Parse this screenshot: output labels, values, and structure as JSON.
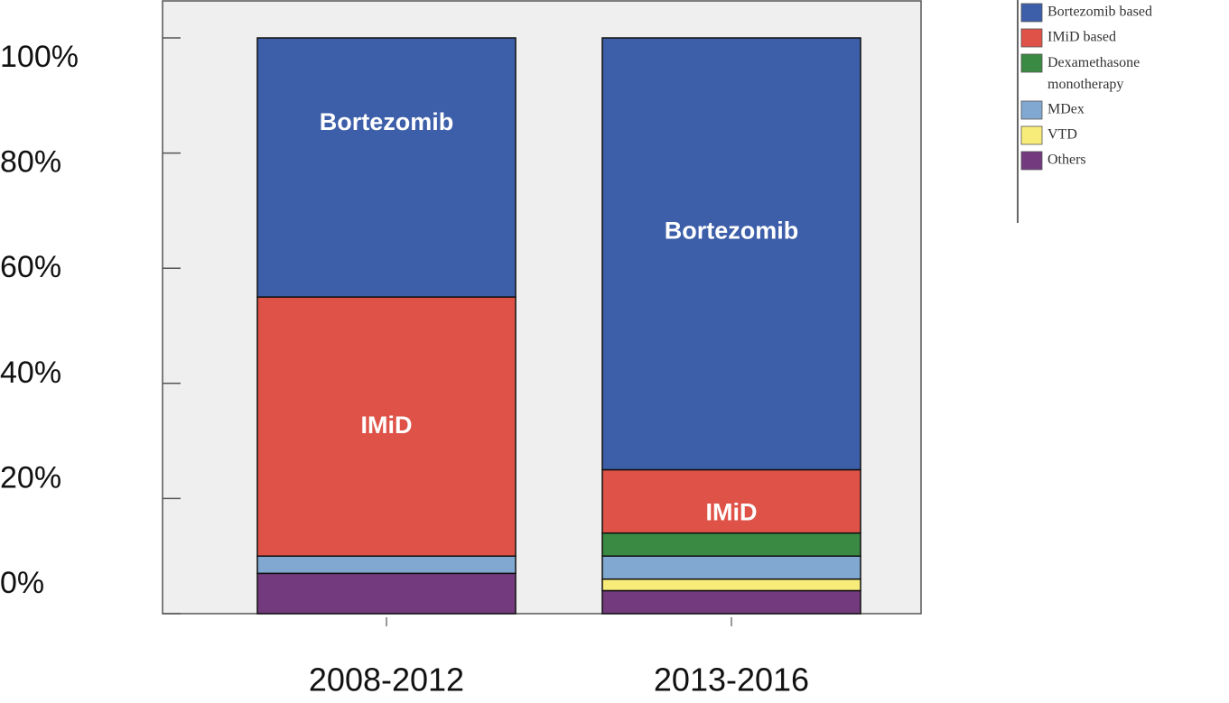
{
  "chart_data": {
    "type": "stacked_bar",
    "categories": [
      "2008-2012",
      "2013-2016"
    ],
    "series": [
      {
        "name": "Others",
        "color": "#733a7e",
        "values": [
          7,
          4
        ]
      },
      {
        "name": "VTD",
        "color": "#f7ec7a",
        "values": [
          0,
          2
        ]
      },
      {
        "name": "MDex",
        "color": "#80a8d0",
        "values": [
          3,
          4
        ]
      },
      {
        "name": "Dexamethasone monotherapy",
        "color": "#3a8a43",
        "values": [
          0,
          4
        ]
      },
      {
        "name": "IMiD based",
        "color": "#de5247",
        "values": [
          45,
          11
        ],
        "segment_labels": [
          "IMiD",
          "IMiD"
        ]
      },
      {
        "name": "Bortezomib based",
        "color": "#3d5ea9",
        "values": [
          45,
          75
        ],
        "segment_labels": [
          "Bortezomib",
          "Bortezomib"
        ]
      }
    ],
    "ylim": [
      0,
      100
    ],
    "yticks": [
      {
        "value": 0,
        "label": "0%"
      },
      {
        "value": 20,
        "label": "20%"
      },
      {
        "value": 40,
        "label": "40%"
      },
      {
        "value": 60,
        "label": "60%"
      },
      {
        "value": 80,
        "label": "80%"
      },
      {
        "value": 100,
        "label": "100%"
      }
    ]
  }
}
